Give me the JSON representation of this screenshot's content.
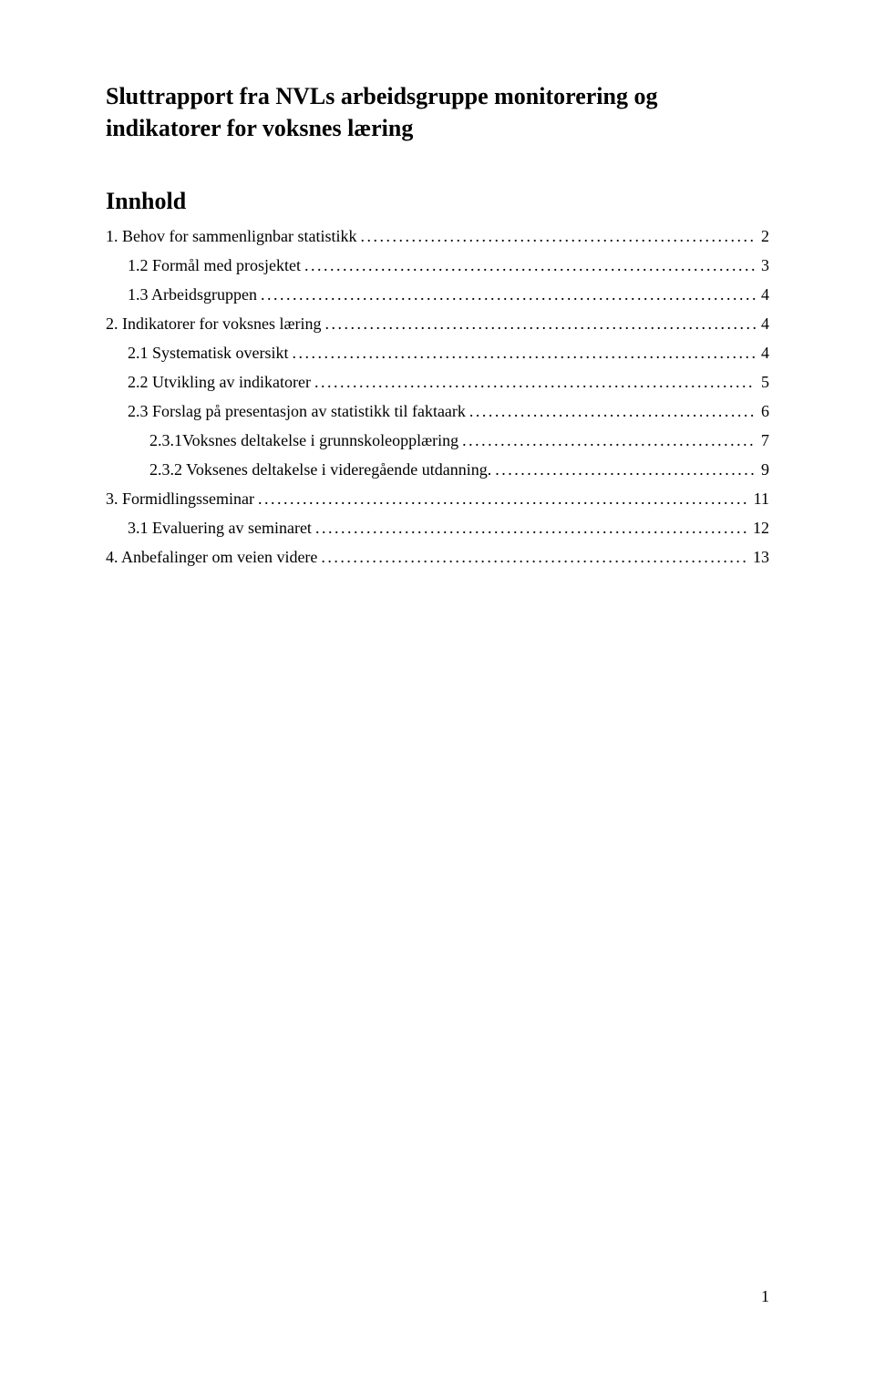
{
  "title": "Sluttrapport fra NVLs arbeidsgruppe monitorering og indikatorer for voksnes læring",
  "toc_heading": "Innhold",
  "toc": [
    {
      "label": "1. Behov for sammenlignbar statistikk",
      "page": "2",
      "indent": 0
    },
    {
      "label": "1.2 Formål med prosjektet",
      "page": "3",
      "indent": 1
    },
    {
      "label": "1.3 Arbeidsgruppen",
      "page": "4",
      "indent": 1
    },
    {
      "label": "2. Indikatorer for voksnes læring",
      "page": "4",
      "indent": 0
    },
    {
      "label": "2.1 Systematisk oversikt",
      "page": "4",
      "indent": 1
    },
    {
      "label": "2.2 Utvikling av indikatorer",
      "page": "5",
      "indent": 1
    },
    {
      "label": "2.3 Forslag på presentasjon av statistikk til faktaark",
      "page": "6",
      "indent": 1
    },
    {
      "label": "2.3.1Voksnes deltakelse i grunnskoleopplæring",
      "page": "7",
      "indent": 2
    },
    {
      "label": "2.3.2 Voksenes deltakelse i videregående utdanning.",
      "page": "9",
      "indent": 2
    },
    {
      "label": "3. Formidlingsseminar",
      "page": "11",
      "indent": 0
    },
    {
      "label": "3.1 Evaluering av seminaret",
      "page": "12",
      "indent": 1
    },
    {
      "label": "4.  Anbefalinger om veien videre",
      "page": "13",
      "indent": 0
    }
  ],
  "page_number": "1"
}
